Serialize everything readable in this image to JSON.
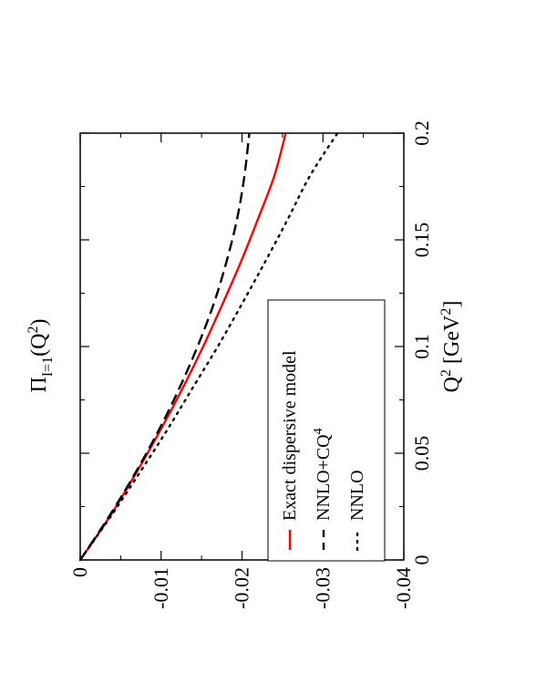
{
  "chart_data": {
    "type": "line",
    "orientation": "rotated 90 degrees counter-clockwise",
    "x_axis": {
      "label_base": "Q",
      "label_sup": "2",
      "label_unit_pre": "[GeV",
      "label_unit_sup": "2",
      "label_unit_post": "]",
      "range": [
        0,
        0.2
      ],
      "ticks": [
        0,
        0.05,
        0.1,
        0.15,
        0.2
      ],
      "tick_labels": [
        "0",
        "0.05",
        "0.1",
        "0.15",
        "0.2"
      ]
    },
    "y_axis": {
      "label_pi": "Π",
      "label_sub": "I=1",
      "label_args": "(Q",
      "label_args_sup": "2",
      "label_close": ")",
      "range": [
        -0.04,
        0
      ],
      "ticks": [
        0,
        -0.01,
        -0.02,
        -0.03,
        -0.04
      ],
      "tick_labels": [
        "0",
        "-0.01",
        "-0.02",
        "-0.03",
        "-0.04"
      ]
    },
    "grid": false,
    "legend_position": "lower-middle",
    "series": [
      {
        "name": "Exact dispersive model",
        "color": "#ff0000",
        "dash": "solid",
        "x": [
          0,
          0.02,
          0.04,
          0.06,
          0.08,
          0.1,
          0.12,
          0.14,
          0.16,
          0.18,
          0.2
        ],
        "y": [
          0,
          -0.0036,
          -0.0068,
          -0.0098,
          -0.0126,
          -0.0152,
          -0.0176,
          -0.0199,
          -0.022,
          -0.024,
          -0.0254
        ]
      },
      {
        "name_prefix": "NNLO+CQ",
        "name_sup": "4",
        "color": "#000000",
        "dash": "dashed",
        "x": [
          0,
          0.02,
          0.04,
          0.06,
          0.08,
          0.1,
          0.12,
          0.14,
          0.16,
          0.18,
          0.2
        ],
        "y": [
          0,
          -0.0035,
          -0.0067,
          -0.0096,
          -0.0122,
          -0.0145,
          -0.0165,
          -0.0181,
          -0.0194,
          -0.0203,
          -0.0209
        ]
      },
      {
        "name": "NNLO",
        "color": "#000000",
        "dash": "dotted",
        "x": [
          0,
          0.02,
          0.04,
          0.06,
          0.08,
          0.1,
          0.12,
          0.14,
          0.16,
          0.18,
          0.2
        ],
        "y": [
          0,
          -0.0037,
          -0.0072,
          -0.0106,
          -0.0138,
          -0.017,
          -0.02,
          -0.0229,
          -0.0257,
          -0.0284,
          -0.0318
        ]
      }
    ]
  }
}
